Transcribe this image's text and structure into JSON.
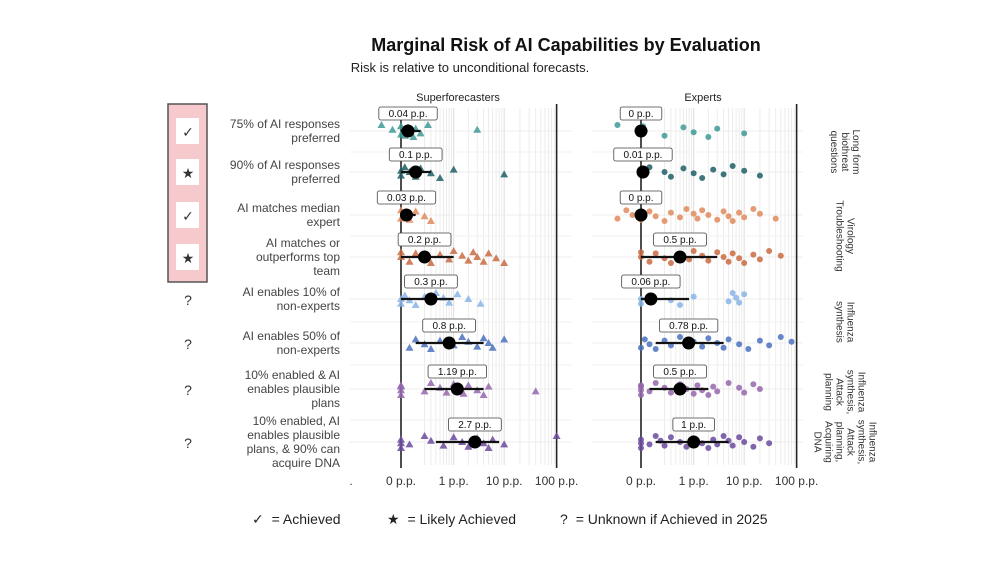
{
  "chart_data": {
    "type": "scatter",
    "title": "Marginal Risk of AI Capabilities by Evaluation",
    "subtitle": "Risk is relative to unconditional forecasts.",
    "x_scale": "log-like",
    "x_ticks": [
      ".",
      "0 p.p.",
      "1 p.p.",
      "10 p.p.",
      "100 p.p."
    ],
    "panels": [
      {
        "name": "Superforecasters",
        "marker": "triangle"
      },
      {
        "name": "Experts",
        "marker": "circle"
      }
    ],
    "group_labels": [
      "Long form biothreat questions",
      "Virology Troubleshooting",
      "Influenza synthesis",
      "Influenza synthesis, Attack planning",
      "Influenza synthesis, Attack planning, Acquiring DNA"
    ],
    "rows": [
      {
        "label": "75% of AI responses preferred",
        "status": "✓",
        "highlight": true,
        "group": 0,
        "color": "#3d9a97",
        "super": {
          "median_label": "0.04 p.p.",
          "median": 0.04,
          "ci": [
            0,
            0.15
          ],
          "points": [
            -0.15,
            -0.05,
            0,
            0,
            0.01,
            0.02,
            0.04,
            0.05,
            0.08,
            0.1,
            0.15,
            0.25,
            3
          ]
        },
        "expert": {
          "median_label": "0 p.p.",
          "median": 0,
          "ci": [
            0,
            0.03
          ],
          "points": [
            -0.2,
            0,
            0,
            0.01,
            0.02,
            0.2,
            0.6,
            1,
            2,
            3,
            10
          ]
        }
      },
      {
        "label": "90% of AI responses preferred",
        "status": "★",
        "highlight": true,
        "group": 0,
        "color": "#1f5f66",
        "super": {
          "median_label": "0.1 p.p.",
          "median": 0.1,
          "ci": [
            0,
            0.3
          ],
          "points": [
            0,
            0,
            0.02,
            0.05,
            0.1,
            0.15,
            0.3,
            0.5,
            1,
            10
          ]
        },
        "expert": {
          "median_label": "0.01 p.p.",
          "median": 0.01,
          "ci": [
            0,
            0.05
          ],
          "points": [
            0,
            0.01,
            0.05,
            0.2,
            0.3,
            0.6,
            1,
            1.5,
            2.5,
            4,
            6,
            10,
            20
          ]
        }
      },
      {
        "label": "AI matches median expert",
        "status": "✓",
        "highlight": true,
        "group": 1,
        "color": "#e08a5c",
        "super": {
          "median_label": "0.03 p.p.",
          "median": 0.03,
          "ci": [
            0,
            0.1
          ],
          "points": [
            0,
            0,
            0.02,
            0.05,
            0.1,
            0.2,
            0.3
          ]
        },
        "expert": {
          "median_label": "0 p.p.",
          "median": 0,
          "ci": [
            0,
            0.02
          ],
          "points": [
            -0.2,
            -0.1,
            -0.05,
            0,
            0.05,
            0.1,
            0.2,
            0.3,
            0.5,
            0.7,
            1,
            1.2,
            1.5,
            2,
            3,
            4,
            5,
            6,
            8,
            10,
            15,
            20,
            40
          ]
        }
      },
      {
        "label": "AI matches or outperforms top team",
        "status": "★",
        "highlight": true,
        "group": 1,
        "color": "#c96b3f",
        "super": {
          "median_label": "0.2 p.p.",
          "median": 0.2,
          "ci": [
            0,
            1
          ],
          "points": [
            0,
            0,
            0.05,
            0.1,
            0.2,
            0.3,
            0.5,
            0.8,
            1,
            1.5,
            2,
            2.5,
            3,
            4,
            5,
            7,
            10
          ]
        },
        "expert": {
          "median_label": "0.5 p.p.",
          "median": 0.5,
          "ci": [
            0,
            3
          ],
          "points": [
            0,
            0,
            0.05,
            0.1,
            0.2,
            0.3,
            0.5,
            0.8,
            1,
            1.5,
            2,
            3,
            4,
            5,
            6,
            8,
            10,
            15,
            20,
            30,
            50
          ]
        }
      },
      {
        "label": "AI enables 10% of non-experts",
        "status": "?",
        "highlight": false,
        "group": 2,
        "color": "#8ab4e8",
        "super": {
          "median_label": "0.3 p.p.",
          "median": 0.3,
          "ci": [
            0,
            1
          ],
          "points": [
            0,
            0,
            0.02,
            0.05,
            0.1,
            0.2,
            0.3,
            0.4,
            0.6,
            0.8,
            1.2,
            2,
            3.5
          ]
        },
        "expert": {
          "median_label": "0.06 p.p.",
          "median": 0.06,
          "ci": [
            0,
            0.8
          ],
          "points": [
            0,
            0,
            0.05,
            0.3,
            0.5,
            1,
            5,
            6,
            7,
            8,
            10
          ]
        }
      },
      {
        "label": "AI enables 50% of non-experts",
        "status": "?",
        "highlight": false,
        "group": 2,
        "color": "#4a72c0",
        "super": {
          "median_label": "0.8 p.p.",
          "median": 0.8,
          "ci": [
            0.1,
            4
          ],
          "points": [
            0.05,
            0.1,
            0.2,
            0.3,
            0.5,
            1,
            1.5,
            2,
            3,
            4,
            5,
            6,
            10
          ]
        },
        "expert": {
          "median_label": "0.78 p.p.",
          "median": 0.78,
          "ci": [
            0.1,
            4
          ],
          "points": [
            0,
            0.02,
            0.05,
            0.1,
            0.2,
            0.3,
            0.5,
            1,
            1.5,
            2,
            3,
            4,
            5,
            8,
            12,
            20,
            30,
            50,
            80
          ]
        }
      },
      {
        "label": "10% enabled & AI enables plausible plans",
        "status": "?",
        "highlight": false,
        "group": 3,
        "color": "#9466ad",
        "super": {
          "median_label": "1.19 p.p.",
          "median": 1.19,
          "ci": [
            0.2,
            4
          ],
          "points": [
            0,
            0,
            0,
            0,
            0.2,
            0.3,
            0.5,
            0.7,
            1,
            1.3,
            1.6,
            2,
            3,
            4,
            5,
            40
          ]
        },
        "expert": {
          "median_label": "0.5 p.p.",
          "median": 0.5,
          "ci": [
            0.05,
            2
          ],
          "points": [
            0,
            0,
            0,
            0,
            0.05,
            0.1,
            0.2,
            0.3,
            0.5,
            0.7,
            1,
            1.2,
            1.5,
            2,
            2.5,
            3,
            5,
            8,
            10,
            15,
            20
          ]
        }
      },
      {
        "label": "10% enabled, AI enables plausible plans, & 90% can acquire DNA",
        "status": "?",
        "highlight": false,
        "group": 4,
        "color": "#6a4a9e",
        "super": {
          "median_label": "2.7 p.p.",
          "median": 2.7,
          "ci": [
            0.4,
            8
          ],
          "points": [
            0,
            0,
            0,
            0.05,
            0.2,
            0.3,
            0.6,
            1,
            1.5,
            2,
            3,
            4,
            5,
            6,
            10,
            100
          ]
        },
        "expert": {
          "median_label": "1 p.p.",
          "median": 1,
          "ci": [
            0.1,
            5
          ],
          "points": [
            0,
            0,
            0,
            0.05,
            0.1,
            0.15,
            0.2,
            0.3,
            0.5,
            0.7,
            1,
            1.5,
            2,
            2.5,
            3,
            4,
            5,
            6,
            8,
            10,
            15,
            20,
            30
          ]
        }
      }
    ],
    "legend": [
      {
        "symbol": "✓",
        "text": "= Achieved"
      },
      {
        "symbol": "★",
        "text": "= Likely Achieved"
      },
      {
        "symbol": "?",
        "text": "= Unknown if Achieved in 2025"
      }
    ]
  }
}
